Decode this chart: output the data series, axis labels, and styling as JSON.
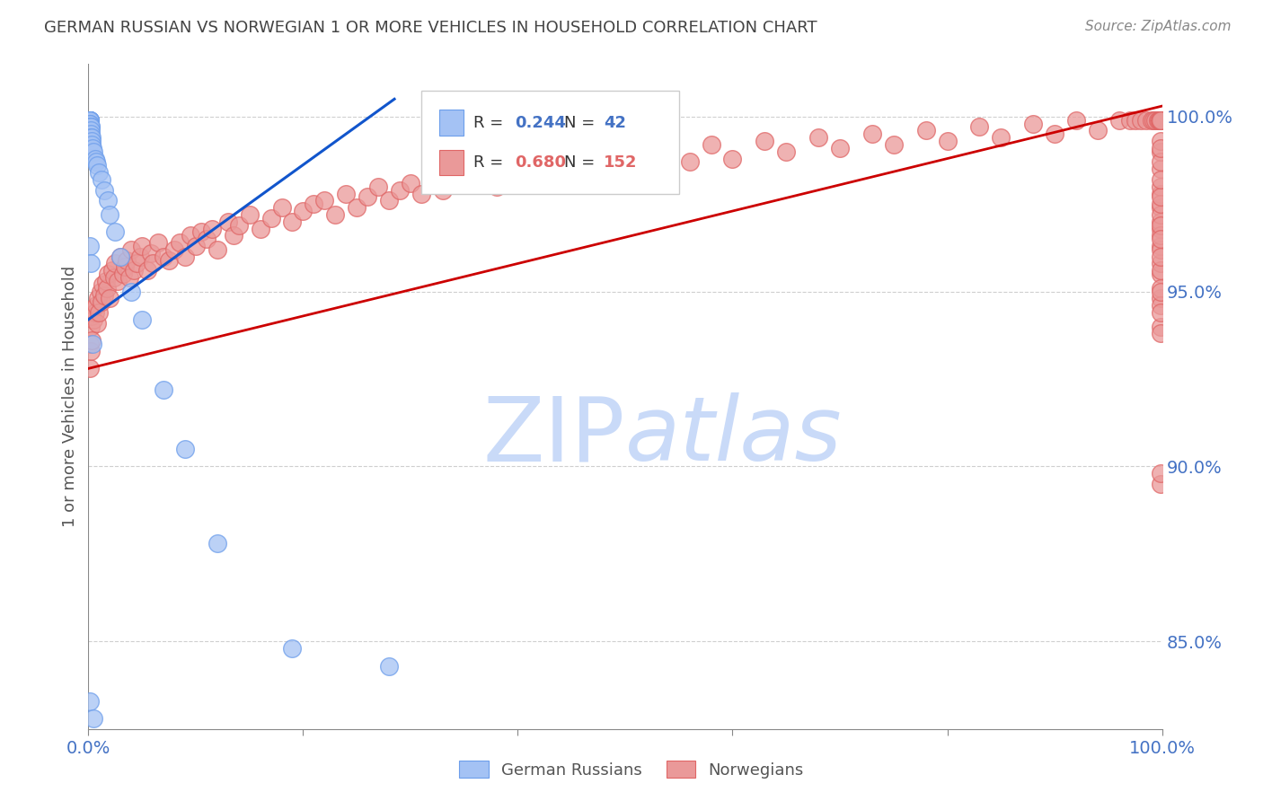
{
  "title": "GERMAN RUSSIAN VS NORWEGIAN 1 OR MORE VEHICLES IN HOUSEHOLD CORRELATION CHART",
  "source": "Source: ZipAtlas.com",
  "ylabel": "1 or more Vehicles in Household",
  "right_ytick_labels": [
    "100.0%",
    "95.0%",
    "90.0%",
    "85.0%"
  ],
  "right_ytick_values": [
    1.0,
    0.95,
    0.9,
    0.85
  ],
  "xmin": 0.0,
  "xmax": 1.0,
  "ymin": 0.825,
  "ymax": 1.015,
  "blue_R": 0.244,
  "blue_N": 42,
  "pink_R": 0.68,
  "pink_N": 152,
  "legend_label_blue": "German Russians",
  "legend_label_pink": "Norwegians",
  "title_color": "#444444",
  "source_color": "#888888",
  "blue_color": "#a4c2f4",
  "pink_color": "#ea9999",
  "blue_edge_color": "#6d9eeb",
  "pink_edge_color": "#e06666",
  "blue_line_color": "#1155cc",
  "pink_line_color": "#cc0000",
  "axis_label_color": "#4472c4",
  "right_tick_color": "#4472c4",
  "watermark_color": "#c9daf8",
  "grid_color": "#bbbbbb",
  "blue_trend_x": [
    0.0,
    0.285
  ],
  "blue_trend_y": [
    0.942,
    1.005
  ],
  "pink_trend_x": [
    0.0,
    1.0
  ],
  "pink_trend_y": [
    0.928,
    1.003
  ],
  "blue_x": [
    0.001,
    0.001,
    0.001,
    0.001,
    0.001,
    0.001,
    0.001,
    0.001,
    0.001,
    0.001,
    0.002,
    0.002,
    0.002,
    0.002,
    0.002,
    0.003,
    0.003,
    0.003,
    0.004,
    0.005,
    0.006,
    0.007,
    0.008,
    0.01,
    0.012,
    0.015,
    0.018,
    0.02,
    0.025,
    0.03,
    0.04,
    0.05,
    0.07,
    0.09,
    0.12,
    0.19,
    0.28,
    0.001,
    0.002,
    0.004,
    0.001,
    0.005
  ],
  "blue_y": [
    0.999,
    0.999,
    0.999,
    0.999,
    0.999,
    0.999,
    0.999,
    0.998,
    0.998,
    0.997,
    0.997,
    0.997,
    0.996,
    0.995,
    0.994,
    0.994,
    0.993,
    0.992,
    0.991,
    0.99,
    0.988,
    0.987,
    0.986,
    0.984,
    0.982,
    0.979,
    0.976,
    0.972,
    0.967,
    0.96,
    0.95,
    0.942,
    0.922,
    0.905,
    0.878,
    0.848,
    0.843,
    0.963,
    0.958,
    0.935,
    0.833,
    0.828
  ],
  "pink_x": [
    0.001,
    0.001,
    0.002,
    0.002,
    0.003,
    0.003,
    0.004,
    0.005,
    0.006,
    0.007,
    0.008,
    0.009,
    0.01,
    0.011,
    0.012,
    0.013,
    0.015,
    0.016,
    0.017,
    0.018,
    0.02,
    0.022,
    0.024,
    0.025,
    0.027,
    0.03,
    0.032,
    0.034,
    0.036,
    0.038,
    0.04,
    0.042,
    0.045,
    0.048,
    0.05,
    0.055,
    0.058,
    0.06,
    0.065,
    0.07,
    0.075,
    0.08,
    0.085,
    0.09,
    0.095,
    0.1,
    0.105,
    0.11,
    0.115,
    0.12,
    0.13,
    0.135,
    0.14,
    0.15,
    0.16,
    0.17,
    0.18,
    0.19,
    0.2,
    0.21,
    0.22,
    0.23,
    0.24,
    0.25,
    0.26,
    0.27,
    0.28,
    0.29,
    0.3,
    0.31,
    0.32,
    0.33,
    0.35,
    0.36,
    0.38,
    0.4,
    0.42,
    0.44,
    0.46,
    0.48,
    0.5,
    0.52,
    0.54,
    0.56,
    0.58,
    0.6,
    0.63,
    0.65,
    0.68,
    0.7,
    0.73,
    0.75,
    0.78,
    0.8,
    0.83,
    0.85,
    0.88,
    0.9,
    0.92,
    0.94,
    0.96,
    0.97,
    0.975,
    0.98,
    0.985,
    0.99,
    0.992,
    0.994,
    0.996,
    0.997,
    0.998,
    0.999,
    0.999,
    0.999,
    0.999,
    0.999,
    0.999,
    0.999,
    0.999,
    0.999,
    0.999,
    0.999,
    0.999,
    0.999,
    0.999,
    0.999,
    0.999,
    0.999,
    0.999,
    0.999,
    0.999,
    0.999,
    0.999,
    0.999,
    0.999,
    0.999,
    0.999,
    0.999,
    0.999,
    0.999,
    0.999,
    0.999,
    0.999,
    0.999,
    0.999,
    0.999,
    0.999,
    0.999,
    0.999,
    0.999,
    0.999,
    0.999
  ],
  "pink_y": [
    0.935,
    0.928,
    0.94,
    0.933,
    0.943,
    0.936,
    0.945,
    0.942,
    0.944,
    0.946,
    0.941,
    0.948,
    0.944,
    0.95,
    0.947,
    0.952,
    0.949,
    0.953,
    0.951,
    0.955,
    0.948,
    0.956,
    0.954,
    0.958,
    0.953,
    0.96,
    0.955,
    0.957,
    0.959,
    0.954,
    0.962,
    0.956,
    0.958,
    0.96,
    0.963,
    0.956,
    0.961,
    0.958,
    0.964,
    0.96,
    0.959,
    0.962,
    0.964,
    0.96,
    0.966,
    0.963,
    0.967,
    0.965,
    0.968,
    0.962,
    0.97,
    0.966,
    0.969,
    0.972,
    0.968,
    0.971,
    0.974,
    0.97,
    0.973,
    0.975,
    0.976,
    0.972,
    0.978,
    0.974,
    0.977,
    0.98,
    0.976,
    0.979,
    0.981,
    0.978,
    0.983,
    0.979,
    0.982,
    0.984,
    0.98,
    0.986,
    0.982,
    0.988,
    0.984,
    0.987,
    0.989,
    0.985,
    0.991,
    0.987,
    0.992,
    0.988,
    0.993,
    0.99,
    0.994,
    0.991,
    0.995,
    0.992,
    0.996,
    0.993,
    0.997,
    0.994,
    0.998,
    0.995,
    0.999,
    0.996,
    0.999,
    0.999,
    0.999,
    0.999,
    0.999,
    0.999,
    0.999,
    0.999,
    0.999,
    0.999,
    0.999,
    0.999,
    0.999,
    0.999,
    0.999,
    0.999,
    0.999,
    0.999,
    0.999,
    0.999,
    0.955,
    0.948,
    0.951,
    0.958,
    0.963,
    0.946,
    0.95,
    0.94,
    0.962,
    0.956,
    0.944,
    0.968,
    0.974,
    0.96,
    0.97,
    0.938,
    0.978,
    0.966,
    0.972,
    0.98,
    0.985,
    0.99,
    0.975,
    0.969,
    0.987,
    0.993,
    0.965,
    0.977,
    0.982,
    0.895,
    0.991,
    0.898
  ]
}
